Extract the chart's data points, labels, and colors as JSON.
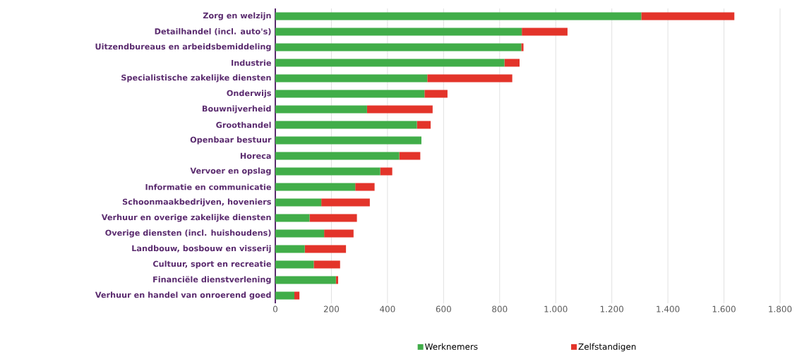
{
  "chart_data": {
    "type": "bar",
    "orientation": "horizontal",
    "stacked": true,
    "categories": [
      "Zorg en welzijn",
      "Detailhandel (incl. auto's)",
      "Uitzendbureaus en arbeidsbemiddeling",
      "Industrie",
      "Specialistische zakelijke diensten",
      "Onderwijs",
      "Bouwnijverheid",
      "Groothandel",
      "Openbaar bestuur",
      "Horeca",
      "Vervoer en opslag",
      "Informatie en communicatie",
      "Schoonmaakbedrijven, hoveniers",
      "Verhuur en overige zakelijke diensten",
      "Overige diensten (incl. huishoudens)",
      "Landbouw, bosbouw en visserij",
      "Cultuur, sport en recreatie",
      "Financiële dienstverlening",
      "Verhuur en handel van onroerend goed"
    ],
    "series": [
      {
        "name": "Werknemers",
        "color": "#41ad49",
        "values": [
          1305,
          879,
          877,
          817,
          542,
          532,
          327,
          505,
          521,
          442,
          374,
          285,
          164,
          122,
          174,
          105,
          137,
          216,
          68
        ]
      },
      {
        "name": "Zelfstandigen",
        "color": "#e3342a",
        "values": [
          332,
          163,
          8,
          54,
          303,
          82,
          234,
          49,
          0,
          75,
          43,
          69,
          173,
          169,
          105,
          147,
          94,
          8,
          18
        ]
      }
    ],
    "xlim": [
      0,
      1800
    ],
    "xticks": [
      0,
      200,
      400,
      600,
      800,
      {
        "value": 1000,
        "label": "1.000"
      },
      {
        "value": 1200,
        "label": "1.200"
      },
      {
        "value": 1400,
        "label": "1.400"
      },
      {
        "value": 1600,
        "label": "1.600"
      },
      {
        "value": 1800,
        "label": "1.800"
      }
    ],
    "grid": "x",
    "legend": "bottom"
  }
}
